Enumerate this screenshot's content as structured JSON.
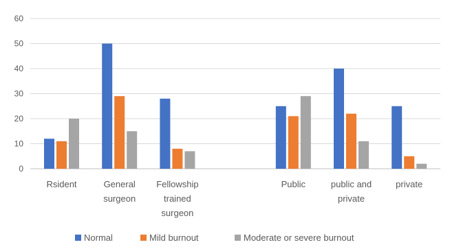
{
  "chart_data": {
    "type": "bar",
    "categories": [
      [
        "Rsident"
      ],
      [
        "General",
        "surgeon"
      ],
      [
        "Fellowship",
        "trained",
        "surgeon"
      ],
      [],
      [
        "Public"
      ],
      [
        "public and",
        "private"
      ],
      [
        "private"
      ]
    ],
    "series": [
      {
        "name": "Normal",
        "color": "#4472C4",
        "values": [
          12,
          50,
          28,
          null,
          25,
          40,
          25
        ]
      },
      {
        "name": "Mild burnout",
        "color": "#ED7D31",
        "values": [
          11,
          29,
          8,
          null,
          21,
          22,
          5
        ]
      },
      {
        "name": "Moderate or severe burnout",
        "color": "#A5A5A5",
        "values": [
          20,
          15,
          7,
          null,
          29,
          11,
          2
        ]
      }
    ],
    "yticks": [
      0,
      10,
      20,
      30,
      40,
      50,
      60
    ],
    "ylim": [
      0,
      60
    ],
    "grid": true,
    "legend_position": "bottom",
    "title": "",
    "xlabel": "",
    "ylabel": ""
  }
}
